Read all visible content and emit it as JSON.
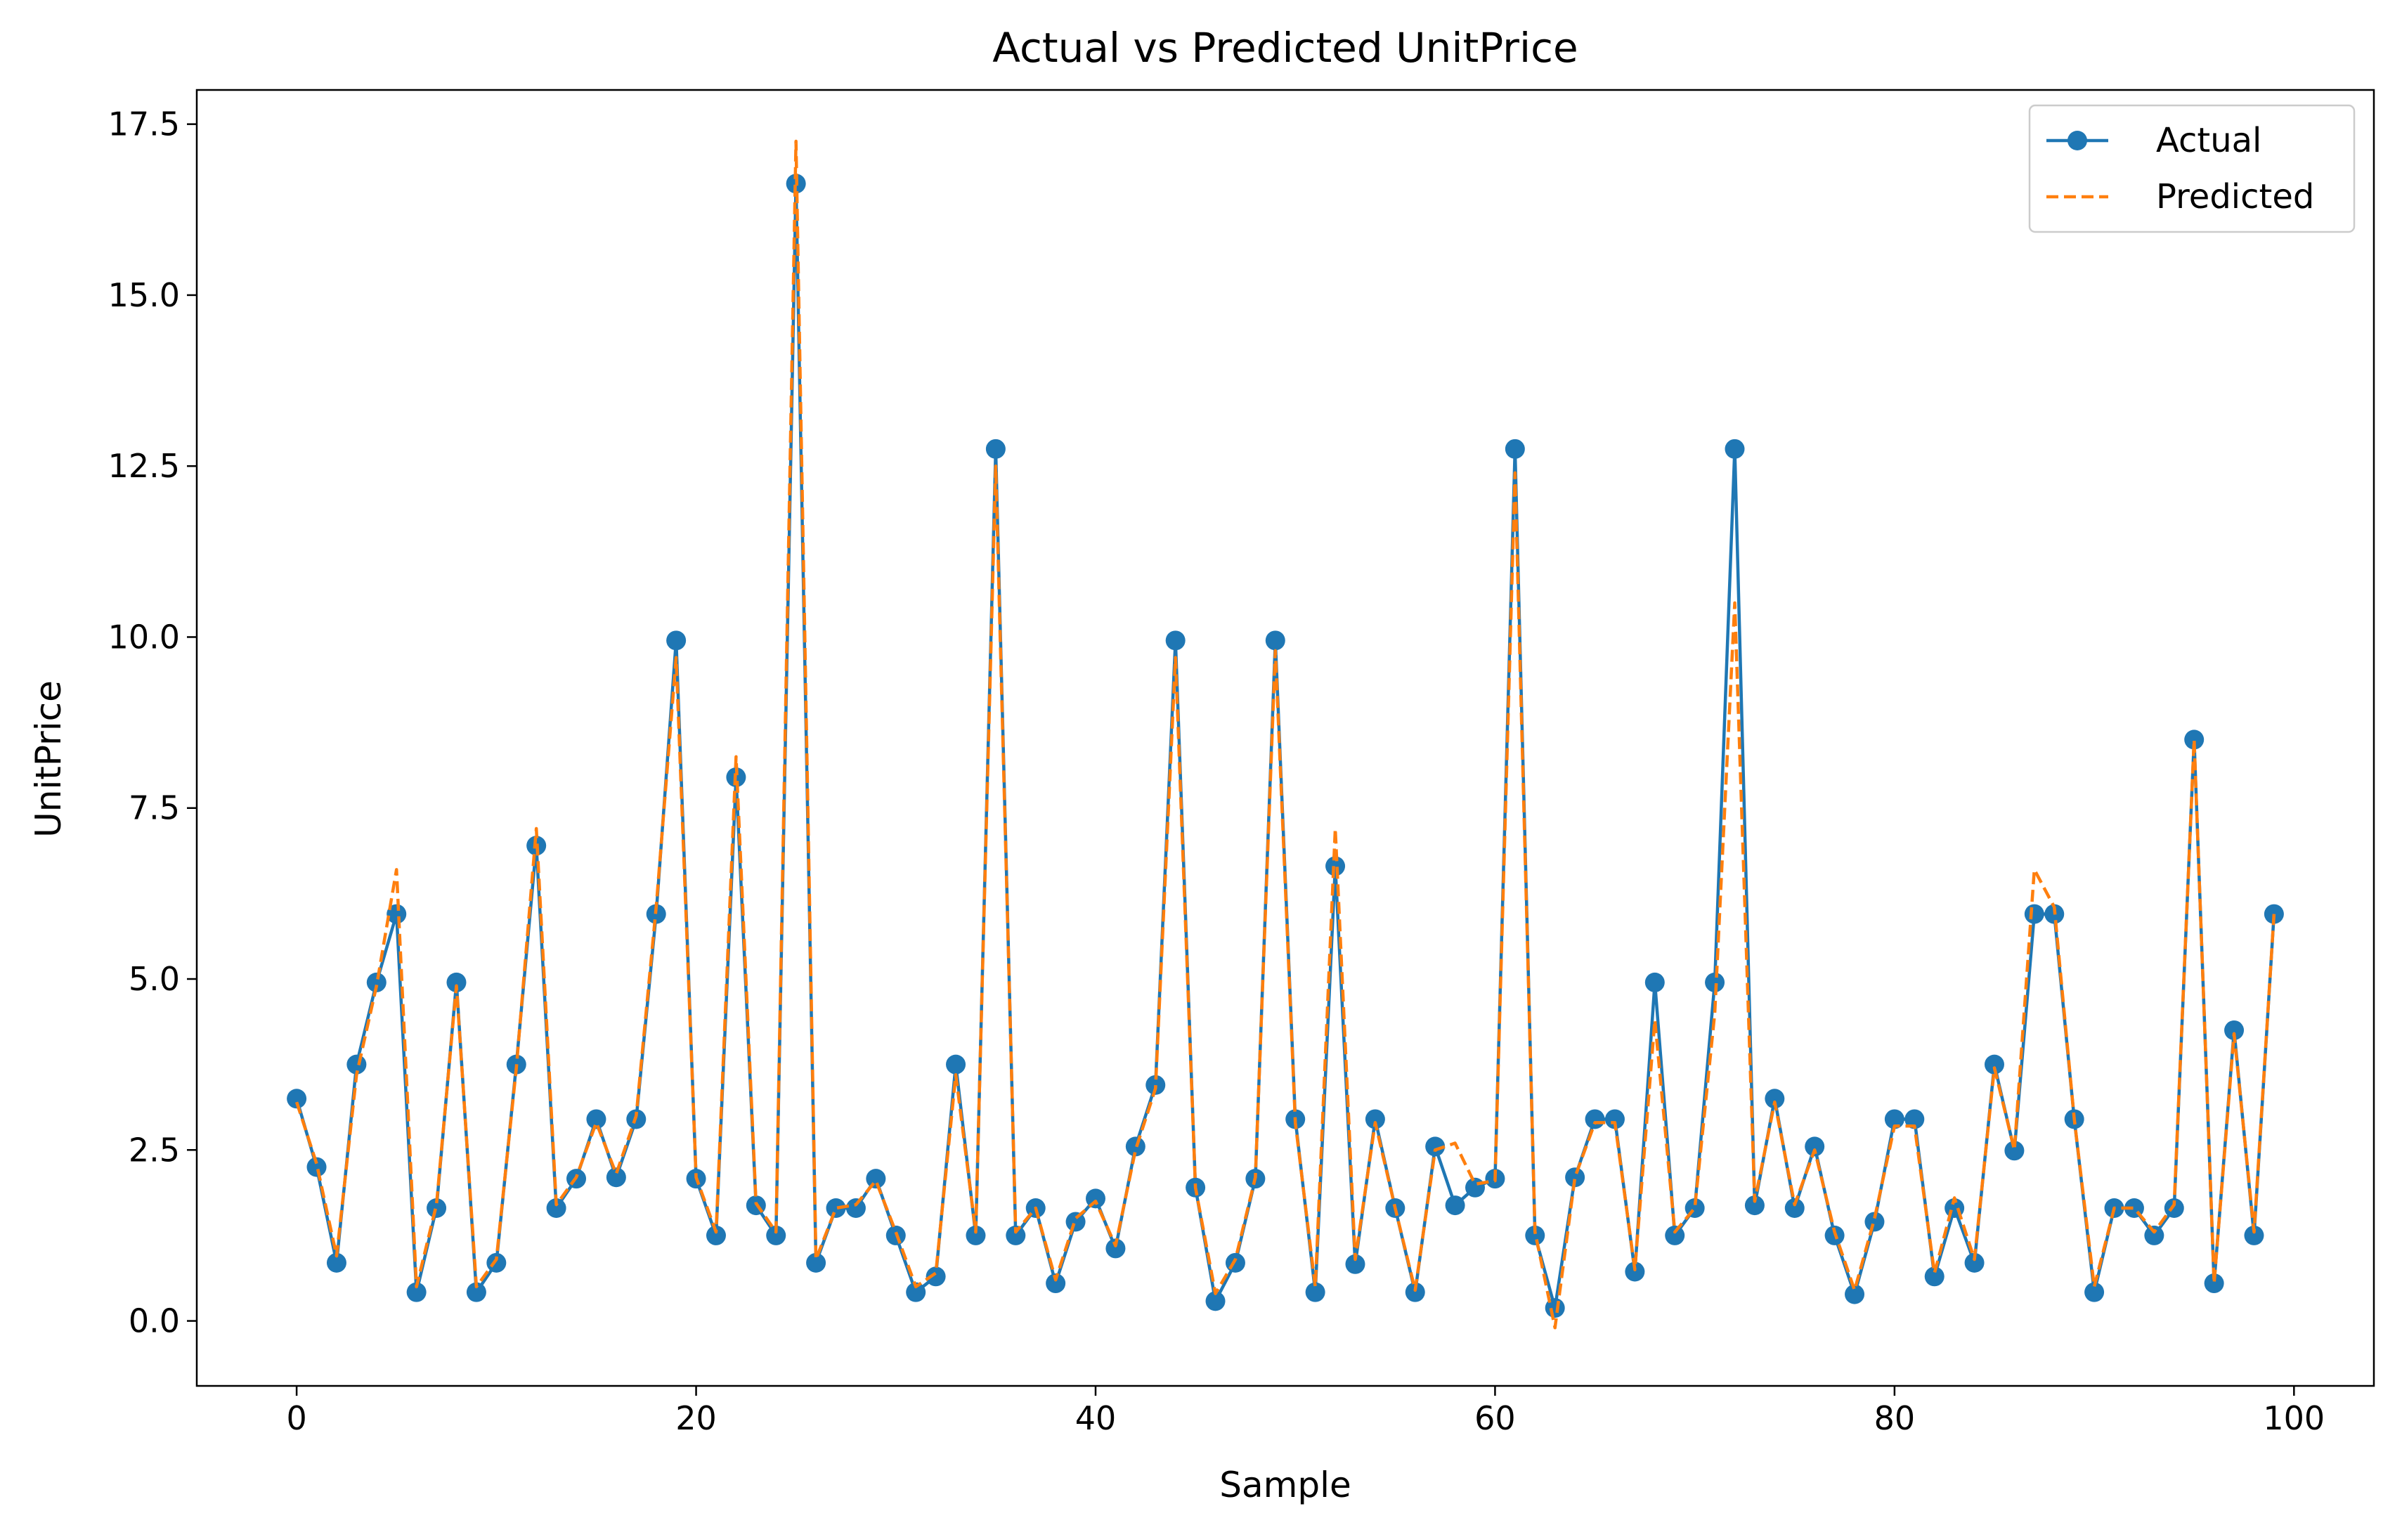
{
  "chart_data": {
    "type": "line",
    "title": "Actual vs Predicted UnitPrice",
    "xlabel": "Sample",
    "ylabel": "UnitPrice",
    "xlim": [
      -5,
      104
    ],
    "ylim": [
      -0.95,
      18.0
    ],
    "xticks": [
      0,
      20,
      40,
      60,
      80,
      100
    ],
    "yticks": [
      0.0,
      2.5,
      5.0,
      7.5,
      10.0,
      12.5,
      15.0,
      17.5
    ],
    "xtick_labels": [
      "0",
      "20",
      "40",
      "60",
      "80",
      "100"
    ],
    "ytick_labels": [
      "0.0",
      "2.5",
      "5.0",
      "7.5",
      "10.0",
      "12.5",
      "15.0",
      "17.5"
    ],
    "grid": false,
    "legend": "top-right",
    "series": [
      {
        "name": "Actual",
        "color": "#1f77b4",
        "style": "solid-with-circle-markers",
        "x": [
          0,
          1,
          2,
          3,
          4,
          5,
          6,
          7,
          8,
          9,
          10,
          11,
          12,
          13,
          14,
          15,
          16,
          17,
          18,
          19,
          20,
          21,
          22,
          23,
          24,
          25,
          26,
          27,
          28,
          29,
          30,
          31,
          32,
          33,
          34,
          35,
          36,
          37,
          38,
          39,
          40,
          41,
          42,
          43,
          44,
          45,
          46,
          47,
          48,
          49,
          50,
          51,
          52,
          53,
          54,
          55,
          56,
          57,
          58,
          59,
          60,
          61,
          62,
          63,
          64,
          65,
          66,
          67,
          68,
          69,
          70,
          71,
          72,
          73,
          74,
          75,
          76,
          77,
          78,
          79,
          80,
          81,
          82,
          83,
          84,
          85,
          86,
          87,
          88,
          89,
          90,
          91,
          92,
          93,
          94,
          95,
          96,
          97,
          98,
          99
        ],
        "values": [
          3.25,
          2.25,
          0.85,
          3.75,
          4.95,
          5.95,
          0.42,
          1.65,
          4.95,
          0.42,
          0.85,
          3.75,
          6.95,
          1.65,
          2.08,
          2.95,
          2.1,
          2.95,
          5.95,
          9.95,
          2.08,
          1.25,
          7.95,
          1.69,
          1.25,
          16.63,
          0.85,
          1.65,
          1.65,
          2.08,
          1.25,
          0.42,
          0.65,
          3.75,
          1.25,
          12.75,
          1.25,
          1.65,
          0.55,
          1.45,
          1.79,
          1.06,
          2.55,
          3.45,
          9.95,
          1.95,
          0.29,
          0.85,
          2.08,
          9.95,
          2.95,
          0.42,
          6.65,
          0.83,
          2.95,
          1.65,
          0.42,
          2.55,
          1.69,
          1.95,
          2.08,
          12.75,
          1.25,
          0.19,
          2.1,
          2.95,
          2.95,
          0.72,
          4.95,
          1.25,
          1.65,
          4.95,
          12.75,
          1.69,
          3.25,
          1.65,
          2.55,
          1.25,
          0.39,
          1.45,
          2.95,
          2.95,
          0.65,
          1.65,
          0.85,
          3.75,
          2.49,
          5.95,
          5.95,
          2.95,
          0.42,
          1.65,
          1.65,
          1.25,
          1.65,
          8.5,
          0.55,
          4.25,
          1.25,
          5.95
        ]
      },
      {
        "name": "Predicted",
        "color": "#ff7f0e",
        "style": "dashed",
        "x": [
          0,
          1,
          2,
          3,
          4,
          5,
          6,
          7,
          8,
          9,
          10,
          11,
          12,
          13,
          14,
          15,
          16,
          17,
          18,
          19,
          20,
          21,
          22,
          23,
          24,
          25,
          26,
          27,
          28,
          29,
          30,
          31,
          32,
          33,
          34,
          35,
          36,
          37,
          38,
          39,
          40,
          41,
          42,
          43,
          44,
          45,
          46,
          47,
          48,
          49,
          50,
          51,
          52,
          53,
          54,
          55,
          56,
          57,
          58,
          59,
          60,
          61,
          62,
          63,
          64,
          65,
          66,
          67,
          68,
          69,
          70,
          71,
          72,
          73,
          74,
          75,
          76,
          77,
          78,
          79,
          80,
          81,
          82,
          83,
          84,
          85,
          86,
          87,
          88,
          89,
          90,
          91,
          92,
          93,
          94,
          95,
          96,
          97,
          98,
          99
        ],
        "values": [
          3.2,
          2.3,
          0.95,
          3.6,
          4.9,
          6.6,
          0.5,
          1.7,
          4.9,
          0.5,
          0.9,
          3.7,
          7.2,
          1.7,
          2.1,
          2.9,
          2.15,
          3.0,
          6.05,
          9.7,
          2.1,
          1.3,
          8.25,
          1.72,
          1.3,
          17.25,
          0.9,
          1.65,
          1.7,
          2.05,
          1.3,
          0.5,
          0.7,
          3.6,
          1.3,
          12.5,
          1.3,
          1.65,
          0.6,
          1.5,
          1.75,
          1.1,
          2.5,
          3.4,
          9.7,
          1.95,
          0.4,
          0.9,
          2.1,
          9.8,
          2.9,
          0.5,
          7.2,
          0.9,
          2.9,
          1.65,
          0.45,
          2.5,
          2.6,
          2.0,
          2.05,
          12.4,
          1.3,
          -0.1,
          2.1,
          2.9,
          2.9,
          0.75,
          4.4,
          1.3,
          1.65,
          4.5,
          10.5,
          1.75,
          3.2,
          1.7,
          2.5,
          1.3,
          0.45,
          1.5,
          2.85,
          2.85,
          0.7,
          1.8,
          0.9,
          3.7,
          2.5,
          6.6,
          6.05,
          2.95,
          0.5,
          1.65,
          1.65,
          1.3,
          1.7,
          8.5,
          0.55,
          4.2,
          1.3,
          5.95
        ]
      }
    ]
  }
}
